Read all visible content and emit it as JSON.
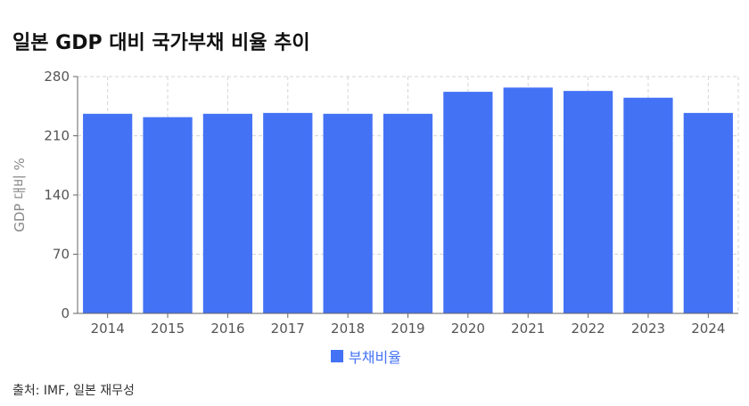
{
  "title": "일본 GDP 대비 국가부채 비율 추이",
  "source": "출처: IMF, 일본 재무성",
  "chart_data": {
    "type": "bar",
    "title": "일본 GDP 대비 국가부채 비율 추이",
    "xlabel": "",
    "ylabel": "GDP 대비 %",
    "categories": [
      "2014",
      "2015",
      "2016",
      "2017",
      "2018",
      "2019",
      "2020",
      "2021",
      "2022",
      "2023",
      "2024"
    ],
    "series": [
      {
        "name": "부채비율",
        "values": [
          236,
          232,
          236,
          237,
          236,
          236,
          262,
          267,
          263,
          255,
          237
        ],
        "color": "#4472f5"
      }
    ],
    "ylim": [
      0,
      280
    ],
    "yticks": [
      0,
      70,
      140,
      210,
      280
    ],
    "grid": true,
    "legend": "bottom-center"
  }
}
